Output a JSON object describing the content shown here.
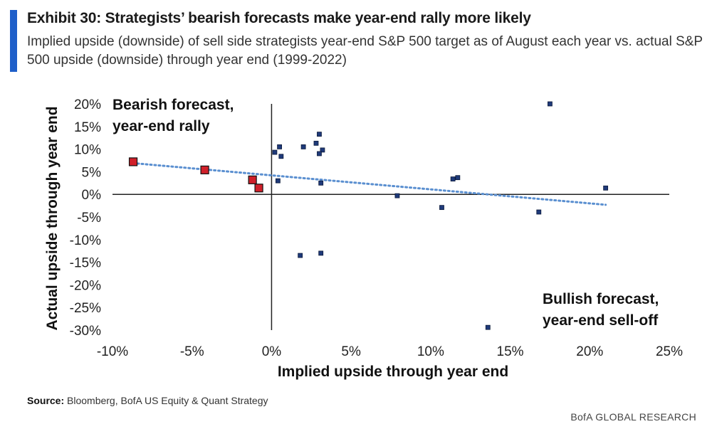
{
  "title": "Exhibit 30: Strategists’ bearish forecasts make year-end rally more likely",
  "subtitle": "Implied upside (downside) of sell side strategists year-end S&P 500 target as of August each year vs. actual S&P 500 upside (downside) through year end (1999-2022)",
  "source_label": "Source:",
  "source_text": "Bloomberg, BofA US Equity & Quant Strategy",
  "footer": "BofA GLOBAL RESEARCH",
  "colors": {
    "accent": "#1f5fc9",
    "point": "#1f3a7a",
    "highlight": "#d0202a",
    "trendline": "#5a8fd0"
  },
  "chart_data": {
    "type": "scatter",
    "xlabel": "Implied upside through year end",
    "ylabel": "Actual upside through year end",
    "xlim": [
      -10,
      25
    ],
    "ylim": [
      -30,
      20
    ],
    "xticks": [
      "-10%",
      "-5%",
      "0%",
      "5%",
      "10%",
      "15%",
      "20%",
      "25%"
    ],
    "yticks": [
      "20%",
      "15%",
      "10%",
      "5%",
      "0%",
      "-5%",
      "-10%",
      "-15%",
      "-20%",
      "-25%",
      "-30%"
    ],
    "annotations": [
      {
        "lines": [
          "Bearish forecast,",
          "year-end rally"
        ],
        "position": "top-left"
      },
      {
        "lines": [
          "Bullish forecast,",
          "year-end sell-off"
        ],
        "position": "bottom-right"
      }
    ],
    "series": [
      {
        "points": [
          {
            "x": 0.2,
            "y": 9.3
          },
          {
            "x": 0.5,
            "y": 10.5
          },
          {
            "x": 0.6,
            "y": 8.4
          },
          {
            "x": 0.4,
            "y": 3.0
          },
          {
            "x": 2.0,
            "y": 10.5
          },
          {
            "x": 2.8,
            "y": 11.3
          },
          {
            "x": 3.0,
            "y": 13.3
          },
          {
            "x": 3.2,
            "y": 9.8
          },
          {
            "x": 3.0,
            "y": 9.0
          },
          {
            "x": 3.1,
            "y": 2.5
          },
          {
            "x": 1.8,
            "y": -13.5
          },
          {
            "x": 3.1,
            "y": -13.0
          },
          {
            "x": 7.9,
            "y": -0.3
          },
          {
            "x": 10.7,
            "y": -2.9
          },
          {
            "x": 11.4,
            "y": 3.4
          },
          {
            "x": 11.7,
            "y": 3.7
          },
          {
            "x": 13.6,
            "y": -29.4
          },
          {
            "x": 16.8,
            "y": -3.9
          },
          {
            "x": 17.5,
            "y": 20.0
          },
          {
            "x": 21.0,
            "y": 1.4
          }
        ]
      },
      {
        "highlighted": true,
        "points": [
          {
            "x": -8.7,
            "y": 7.2
          },
          {
            "x": -4.2,
            "y": 5.4
          },
          {
            "x": -1.2,
            "y": 3.2
          },
          {
            "x": -0.8,
            "y": 1.4
          }
        ]
      }
    ],
    "trendline": {
      "style": "dotted",
      "x": [
        -8.7,
        21.0
      ],
      "y": [
        6.9,
        -2.3
      ]
    }
  }
}
